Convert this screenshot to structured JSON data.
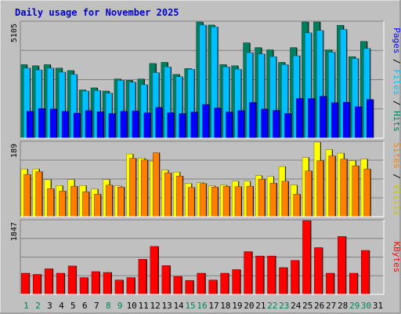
{
  "chart_data": [
    {
      "type": "bar",
      "title": "Daily usage for November 2025",
      "categories": [
        "1",
        "2",
        "3",
        "4",
        "5",
        "6",
        "7",
        "8",
        "9",
        "10",
        "11",
        "12",
        "13",
        "14",
        "15",
        "16",
        "17",
        "18",
        "19",
        "20",
        "21",
        "22",
        "23",
        "24",
        "25",
        "26",
        "27",
        "28",
        "29",
        "30",
        "31"
      ],
      "weekend_days": [
        1,
        2,
        8,
        9,
        15,
        16,
        22,
        23,
        29,
        30
      ],
      "y_max_label": "5105",
      "ylim": [
        0,
        5105
      ],
      "ylabel_parts": [
        "Pages",
        " / ",
        "Files",
        " / ",
        "Hits"
      ],
      "series": [
        {
          "name": "Hits",
          "color": "#007f5f",
          "values": [
            3230,
            3180,
            3230,
            3080,
            2970,
            2120,
            2210,
            2070,
            2600,
            2540,
            2600,
            3280,
            3330,
            2800,
            3060,
            5105,
            4970,
            3230,
            3180,
            4190,
            3980,
            3880,
            3330,
            3980,
            5105,
            5105,
            3880,
            4960,
            3580,
            4250,
            0
          ]
        },
        {
          "name": "Files",
          "color": "#00bfff",
          "values": [
            3080,
            3000,
            3080,
            2900,
            2800,
            2070,
            2090,
            1980,
            2540,
            2460,
            2350,
            2880,
            3130,
            2700,
            3030,
            4970,
            4890,
            3130,
            3030,
            3760,
            3700,
            3580,
            3230,
            3620,
            4630,
            4730,
            3780,
            4780,
            3500,
            3940,
            0
          ]
        },
        {
          "name": "Pages",
          "color": "#0000ff",
          "values": [
            1180,
            1300,
            1280,
            1180,
            1100,
            1210,
            1160,
            1080,
            1180,
            1200,
            1110,
            1350,
            1120,
            1080,
            1150,
            1480,
            1330,
            1150,
            1210,
            1570,
            1280,
            1220,
            1080,
            1750,
            1740,
            1840,
            1560,
            1580,
            1380,
            1700,
            0
          ]
        }
      ]
    },
    {
      "type": "bar",
      "categories": [
        "1",
        "2",
        "3",
        "4",
        "5",
        "6",
        "7",
        "8",
        "9",
        "10",
        "11",
        "12",
        "13",
        "14",
        "15",
        "16",
        "17",
        "18",
        "19",
        "20",
        "21",
        "22",
        "23",
        "24",
        "25",
        "26",
        "27",
        "28",
        "29",
        "30",
        "31"
      ],
      "y_max_label": "189",
      "ylim": [
        0,
        189
      ],
      "ylabel_parts": [
        "Sites",
        " / ",
        "Visits"
      ],
      "series": [
        {
          "name": "Visits",
          "color": "#ffff00",
          "values": [
            121,
            121,
            94,
            79,
            94,
            79,
            70,
            94,
            78,
            159,
            148,
            141,
            118,
            113,
            84,
            86,
            78,
            80,
            90,
            90,
            104,
            102,
            127,
            80,
            150,
            189,
            170,
            161,
            142,
            146,
            0
          ]
        },
        {
          "name": "Sites",
          "color": "#ff7f00",
          "values": [
            107,
            114,
            71,
            65,
            77,
            63,
            57,
            80,
            75,
            148,
            144,
            162,
            111,
            103,
            74,
            84,
            75,
            77,
            76,
            77,
            95,
            85,
            90,
            57,
            116,
            142,
            154,
            146,
            129,
            121,
            0
          ]
        }
      ]
    },
    {
      "type": "bar",
      "categories": [
        "1",
        "2",
        "3",
        "4",
        "5",
        "6",
        "7",
        "8",
        "9",
        "10",
        "11",
        "12",
        "13",
        "14",
        "15",
        "16",
        "17",
        "18",
        "19",
        "20",
        "21",
        "22",
        "23",
        "24",
        "25",
        "26",
        "27",
        "28",
        "29",
        "30",
        "31"
      ],
      "y_max_label": "1847",
      "ylim": [
        0,
        1847
      ],
      "ylabel": "KBytes",
      "series": [
        {
          "name": "KBytes",
          "color": "#ff0000",
          "values": [
            530,
            500,
            640,
            530,
            710,
            420,
            570,
            550,
            360,
            420,
            880,
            1200,
            720,
            450,
            350,
            530,
            360,
            530,
            620,
            1070,
            960,
            960,
            670,
            850,
            1847,
            1170,
            530,
            1450,
            530,
            1100,
            0
          ]
        }
      ]
    }
  ]
}
